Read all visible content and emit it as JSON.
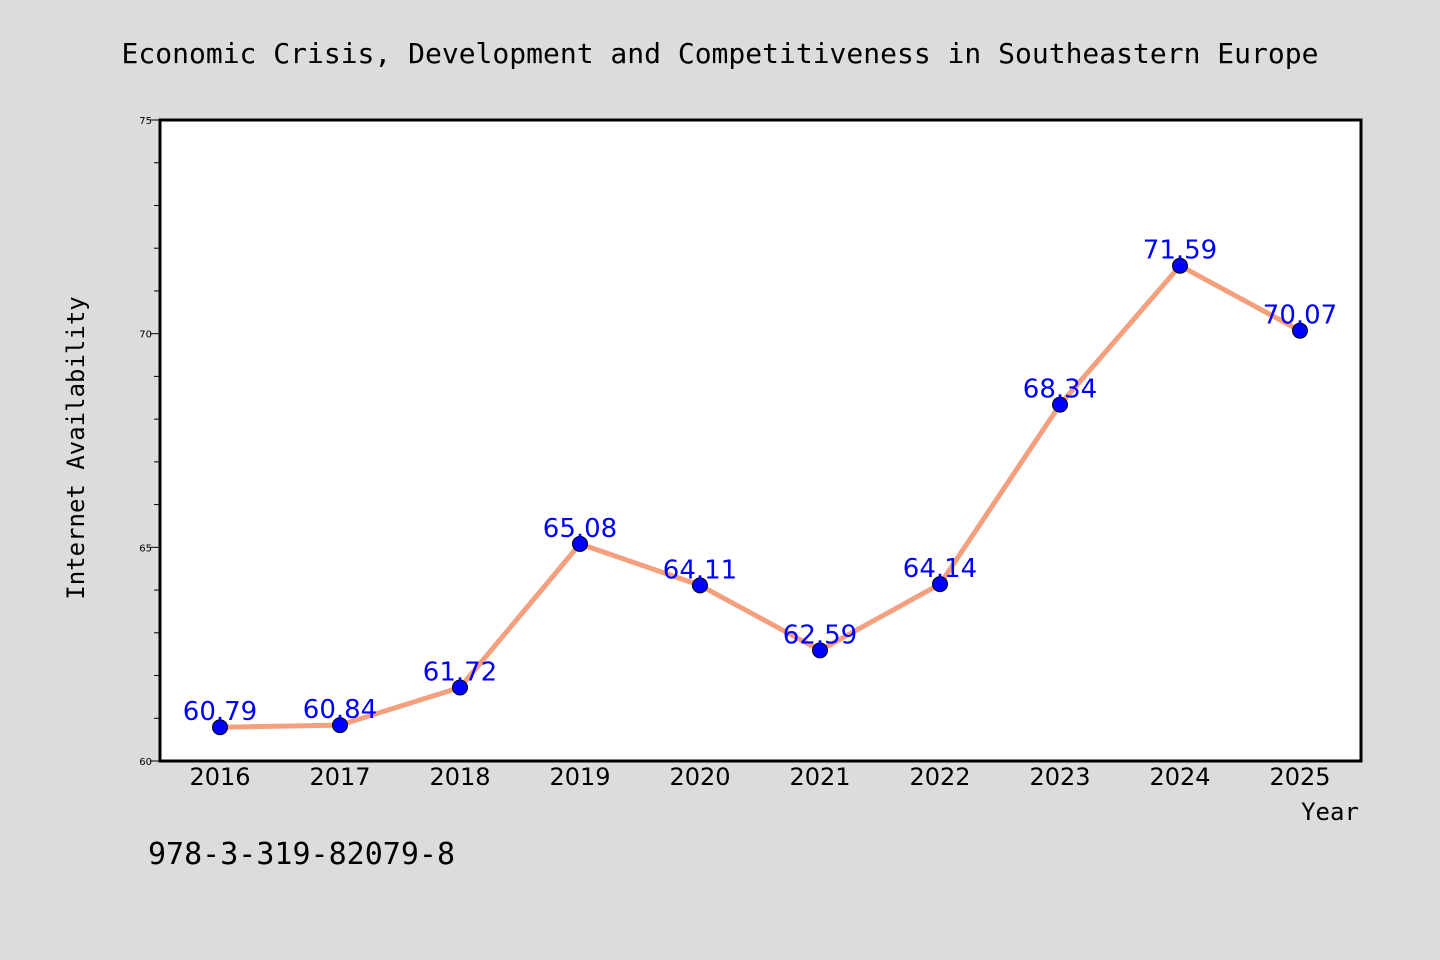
{
  "chart_data": {
    "type": "line",
    "title": "Economic Crisis, Development and Competitiveness in Southeastern Europe",
    "xlabel": "Year",
    "ylabel": "Internet Availability",
    "categories": [
      "2016",
      "2017",
      "2018",
      "2019",
      "2020",
      "2021",
      "2022",
      "2023",
      "2024",
      "2025"
    ],
    "series": [
      {
        "values": [
          60.79,
          60.84,
          61.72,
          65.08,
          64.11,
          62.59,
          64.14,
          68.34,
          71.59,
          70.07
        ]
      }
    ],
    "data_labels": [
      "60.79",
      "60.84",
      "61.72",
      "65.08",
      "64.11",
      "62.59",
      "64.14",
      "68.34",
      "71.59",
      "70.07"
    ],
    "ylim": [
      60,
      75
    ],
    "yticks": [
      "60",
      "65",
      "70",
      "75"
    ],
    "grid": false,
    "colors": {
      "line": "#f4a07e",
      "marker": "#0000ff",
      "data_label": "#0000ff",
      "background": "#dcdcdc",
      "plot_background": "#ffffff"
    }
  },
  "footer": {
    "isbn": "978-3-319-82079-8"
  }
}
